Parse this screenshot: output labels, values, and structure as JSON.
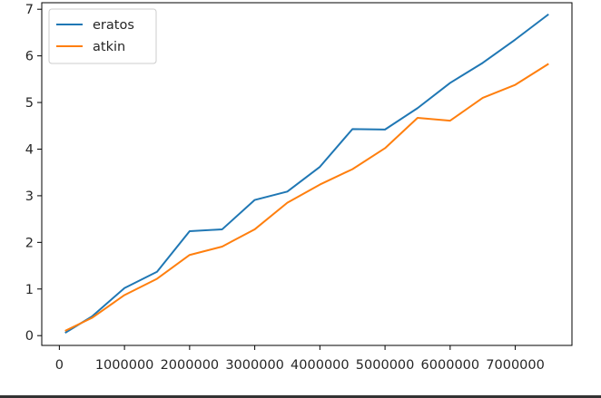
{
  "chart_data": {
    "type": "line",
    "x": [
      100000,
      500000,
      1000000,
      1500000,
      2000000,
      2500000,
      3000000,
      3500000,
      4000000,
      4500000,
      5000000,
      5500000,
      6000000,
      6500000,
      7000000,
      7500000
    ],
    "series": [
      {
        "name": "eratos",
        "color": "#1f77b4",
        "values": [
          0.07,
          0.41,
          1.02,
          1.37,
          2.24,
          2.28,
          2.91,
          3.09,
          3.62,
          4.43,
          4.42,
          4.88,
          5.42,
          5.85,
          6.35,
          6.88
        ]
      },
      {
        "name": "atkin",
        "color": "#ff7f0e",
        "values": [
          0.11,
          0.38,
          0.87,
          1.22,
          1.73,
          1.91,
          2.28,
          2.85,
          3.24,
          3.57,
          4.02,
          4.67,
          4.61,
          5.1,
          5.38,
          5.82
        ]
      }
    ],
    "xticks": [
      0,
      1000000,
      2000000,
      3000000,
      4000000,
      5000000,
      6000000,
      7000000
    ],
    "xtick_labels": [
      "0",
      "1000000",
      "2000000",
      "3000000",
      "4000000",
      "5000000",
      "6000000",
      "7000000"
    ],
    "yticks": [
      0,
      1,
      2,
      3,
      4,
      5,
      6,
      7
    ],
    "ytick_labels": [
      "0",
      "1",
      "2",
      "3",
      "4",
      "5",
      "6",
      "7"
    ],
    "xlim": [
      -270000,
      7870000
    ],
    "ylim": [
      -0.21,
      7.14
    ],
    "grid": false,
    "legend_position": "top-left",
    "title": "",
    "xlabel": "",
    "ylabel": ""
  }
}
